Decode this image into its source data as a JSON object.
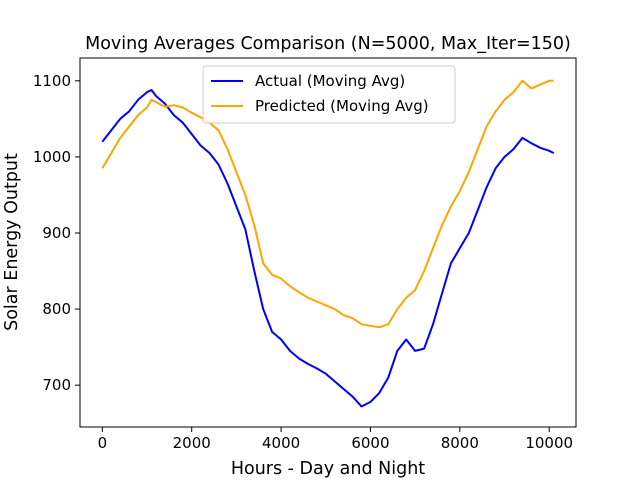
{
  "chart_data": {
    "type": "line",
    "title": "Moving Averages Comparison (N=5000, Max_Iter=150)",
    "xlabel": "Hours - Day and Night",
    "ylabel": "Solar Energy Output",
    "xlim": [
      -500,
      10600
    ],
    "ylim": [
      645,
      1130
    ],
    "xticks": [
      0,
      2000,
      4000,
      6000,
      8000,
      10000
    ],
    "yticks": [
      700,
      800,
      900,
      1000,
      1100
    ],
    "grid": false,
    "legend_position": "top-center",
    "series": [
      {
        "name": "Actual (Moving Avg)",
        "color": "#0000ff",
        "x": [
          0,
          200,
          400,
          600,
          800,
          1000,
          1100,
          1200,
          1400,
          1600,
          1800,
          2000,
          2200,
          2400,
          2600,
          2800,
          3000,
          3200,
          3400,
          3600,
          3800,
          4000,
          4200,
          4400,
          4600,
          4800,
          5000,
          5200,
          5400,
          5600,
          5800,
          6000,
          6200,
          6400,
          6600,
          6800,
          7000,
          7200,
          7400,
          7600,
          7800,
          8000,
          8200,
          8400,
          8600,
          8800,
          9000,
          9200,
          9400,
          9600,
          9800,
          10000,
          10100
        ],
        "y": [
          1020,
          1035,
          1050,
          1060,
          1075,
          1085,
          1088,
          1080,
          1070,
          1055,
          1045,
          1030,
          1015,
          1005,
          990,
          965,
          935,
          905,
          850,
          800,
          770,
          760,
          745,
          735,
          728,
          722,
          715,
          705,
          695,
          685,
          672,
          678,
          690,
          710,
          745,
          760,
          745,
          748,
          780,
          820,
          860,
          880,
          900,
          930,
          960,
          985,
          1000,
          1010,
          1025,
          1018,
          1012,
          1008,
          1005
        ]
      },
      {
        "name": "Predicted (Moving Avg)",
        "color": "#ffa500",
        "x": [
          0,
          200,
          400,
          600,
          800,
          1000,
          1100,
          1200,
          1400,
          1600,
          1800,
          2000,
          2200,
          2400,
          2600,
          2800,
          3000,
          3200,
          3400,
          3600,
          3800,
          4000,
          4200,
          4400,
          4600,
          4800,
          5000,
          5200,
          5400,
          5600,
          5800,
          6000,
          6200,
          6400,
          6600,
          6800,
          7000,
          7200,
          7400,
          7600,
          7800,
          8000,
          8200,
          8400,
          8600,
          8800,
          9000,
          9200,
          9400,
          9600,
          9800,
          10000,
          10100
        ],
        "y": [
          985,
          1005,
          1025,
          1040,
          1055,
          1065,
          1075,
          1072,
          1066,
          1068,
          1065,
          1058,
          1052,
          1045,
          1035,
          1010,
          980,
          950,
          910,
          860,
          845,
          840,
          830,
          822,
          815,
          810,
          805,
          800,
          792,
          788,
          780,
          778,
          776,
          780,
          800,
          815,
          825,
          850,
          880,
          910,
          935,
          955,
          980,
          1010,
          1040,
          1060,
          1075,
          1085,
          1100,
          1090,
          1095,
          1100,
          1100
        ]
      }
    ]
  }
}
